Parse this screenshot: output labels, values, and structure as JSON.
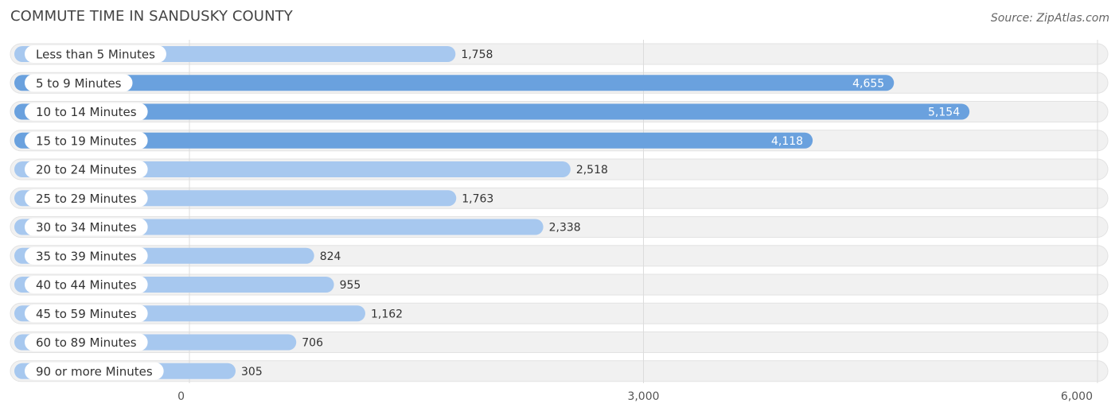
{
  "title": "COMMUTE TIME IN SANDUSKY COUNTY",
  "source": "Source: ZipAtlas.com",
  "chart_data": {
    "type": "bar",
    "orientation": "horizontal",
    "title": "COMMUTE TIME IN SANDUSKY COUNTY",
    "categories": [
      "Less than 5 Minutes",
      "5 to 9 Minutes",
      "10 to 14 Minutes",
      "15 to 19 Minutes",
      "20 to 24 Minutes",
      "25 to 29 Minutes",
      "30 to 34 Minutes",
      "35 to 39 Minutes",
      "40 to 44 Minutes",
      "45 to 59 Minutes",
      "60 to 89 Minutes",
      "90 or more Minutes"
    ],
    "values": [
      1758,
      4655,
      5154,
      4118,
      2518,
      1763,
      2338,
      824,
      955,
      1162,
      706,
      305
    ],
    "value_labels": [
      "1,758",
      "4,655",
      "5,154",
      "4,118",
      "2,518",
      "1,763",
      "2,338",
      "824",
      "955",
      "1,162",
      "706",
      "305"
    ],
    "xlim": [
      0,
      6000
    ],
    "xticks": [
      0,
      3000,
      6000
    ],
    "xtick_labels": [
      "0",
      "3,000",
      "6,000"
    ],
    "xlabel": "",
    "ylabel": "",
    "grid": true,
    "colors": {
      "bar_strong": "#6aa1de",
      "bar_light": "#a7c8ef",
      "track": "#f1f1f1",
      "track_border": "#e2e2e2",
      "grid": "#dcdcdc",
      "label_bg": "#ffffff"
    }
  }
}
